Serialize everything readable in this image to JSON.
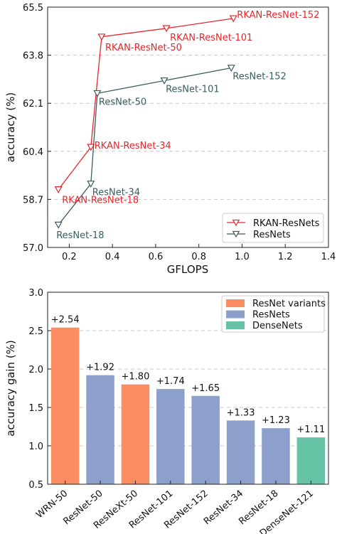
{
  "chart_data": [
    {
      "type": "line",
      "xlabel": "GFLOPS",
      "ylabel": "accuracy (%)",
      "xlim": [
        0.1,
        1.4
      ],
      "ylim": [
        57.0,
        65.5
      ],
      "xticks": [
        "0.2",
        "0.4",
        "0.6",
        "0.8",
        "1.0",
        "1.2",
        "1.4"
      ],
      "yticks": [
        "57.0",
        "58.7",
        "60.4",
        "62.1",
        "63.8",
        "65.5"
      ],
      "grid": "horizontal dashed",
      "legend_position": "bottom-right",
      "series": [
        {
          "name": "RKAN-ResNets",
          "color": "#e8262b",
          "marker": "down-triangle",
          "points": [
            {
              "label": "RKAN-ResNet-18",
              "x": 0.15,
              "y": 59.05
            },
            {
              "label": "RKAN-ResNet-34",
              "x": 0.3,
              "y": 60.55
            },
            {
              "label": "RKAN-ResNet-50",
              "x": 0.35,
              "y": 64.45
            },
            {
              "label": "RKAN-ResNet-101",
              "x": 0.65,
              "y": 64.75
            },
            {
              "label": "RKAN-ResNet-152",
              "x": 0.96,
              "y": 65.1
            }
          ]
        },
        {
          "name": "ResNets",
          "color": "#3b5e5e",
          "marker": "down-triangle",
          "points": [
            {
              "label": "ResNet-18",
              "x": 0.15,
              "y": 57.8
            },
            {
              "label": "ResNet-34",
              "x": 0.3,
              "y": 59.25
            },
            {
              "label": "ResNet-50",
              "x": 0.33,
              "y": 62.45
            },
            {
              "label": "ResNet-101",
              "x": 0.64,
              "y": 62.9
            },
            {
              "label": "ResNet-152",
              "x": 0.95,
              "y": 63.35
            }
          ]
        }
      ]
    },
    {
      "type": "bar",
      "xlabel": "",
      "ylabel": "accuracy gain (%)",
      "ylim": [
        0.5,
        3.0
      ],
      "yticks": [
        "0.5",
        "1.0",
        "1.5",
        "2.0",
        "2.5",
        "3.0"
      ],
      "grid": "horizontal dashed",
      "legend_position": "top-right",
      "legend": [
        {
          "name": "ResNet variants",
          "color": "#fc8d62"
        },
        {
          "name": "ResNets",
          "color": "#8da0cb"
        },
        {
          "name": "DenseNets",
          "color": "#66c2a5"
        }
      ],
      "categories": [
        "WRN-50",
        "ResNet-50",
        "ResNeXt-50",
        "ResNet-101",
        "ResNet-152",
        "ResNet-34",
        "ResNet-18",
        "DenseNet-121"
      ],
      "values": [
        2.54,
        1.92,
        1.8,
        1.74,
        1.65,
        1.33,
        1.23,
        1.11
      ],
      "value_labels": [
        "+2.54",
        "+1.92",
        "+1.80",
        "+1.74",
        "+1.65",
        "+1.33",
        "+1.23",
        "+1.11"
      ],
      "groups": [
        0,
        1,
        0,
        1,
        1,
        1,
        1,
        2
      ]
    }
  ]
}
